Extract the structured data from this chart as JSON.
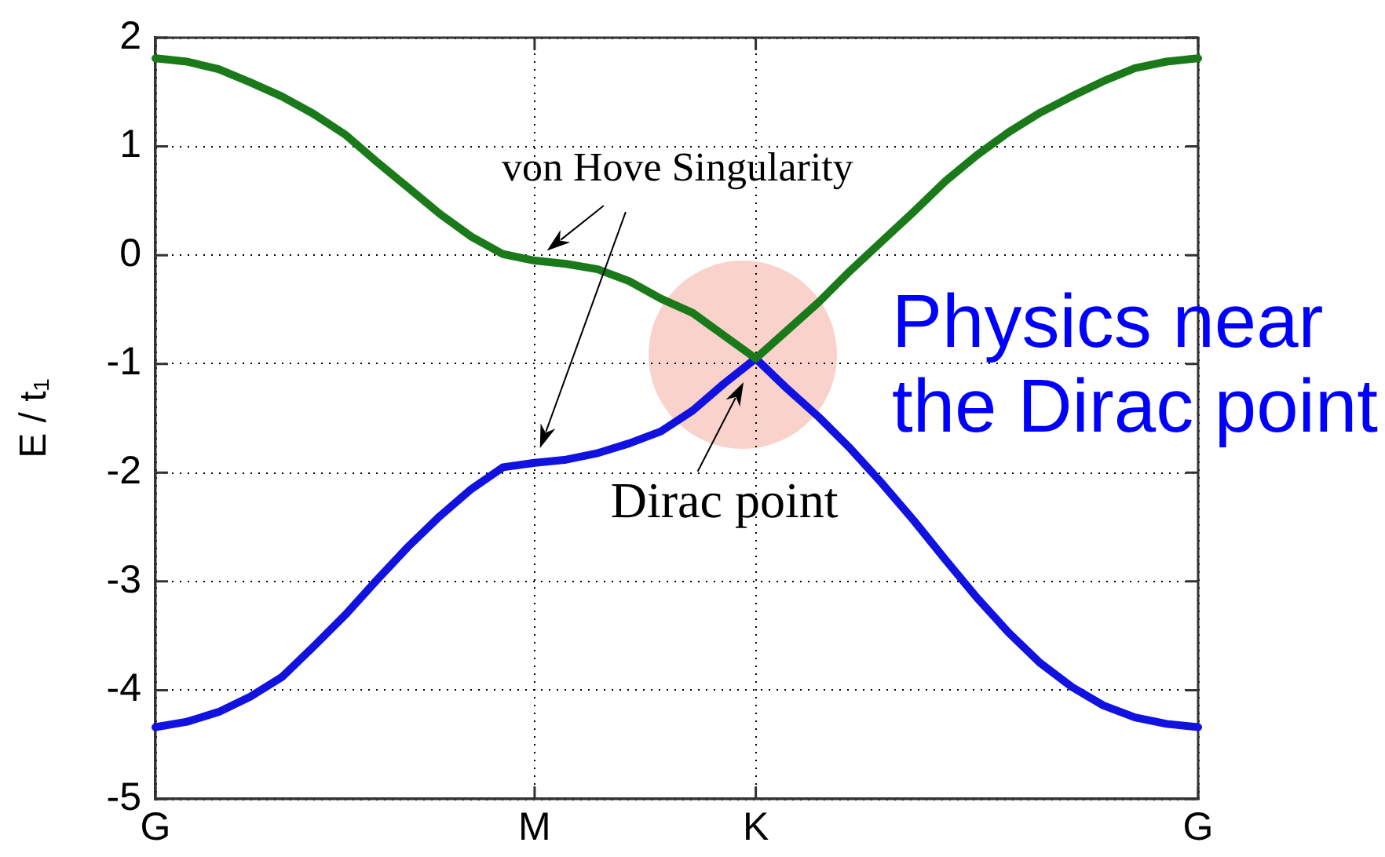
{
  "chart_data": {
    "type": "line",
    "ylabel": "E / t₁",
    "categories": [
      "G",
      null,
      null,
      null,
      null,
      null,
      null,
      null,
      null,
      null,
      null,
      null,
      "M",
      null,
      null,
      null,
      null,
      null,
      null,
      "K",
      null,
      null,
      null,
      null,
      null,
      null,
      null,
      null,
      null,
      null,
      null,
      null,
      null,
      "G"
    ],
    "series": [
      {
        "color": "#1a7a1a",
        "values": [
          1.81,
          1.78,
          1.71,
          1.59,
          1.46,
          1.3,
          1.11,
          0.86,
          0.62,
          0.38,
          0.17,
          0.01,
          -0.05,
          -0.08,
          -0.13,
          -0.24,
          -0.4,
          -0.53,
          -0.74,
          -0.95,
          -0.69,
          -0.43,
          -0.14,
          0.13,
          0.4,
          0.68,
          0.92,
          1.13,
          1.31,
          1.46,
          1.6,
          1.72,
          1.78,
          1.81
        ]
      },
      {
        "color": "#1212e0",
        "values": [
          -4.34,
          -4.29,
          -4.2,
          -4.06,
          -3.88,
          -3.6,
          -3.31,
          -2.99,
          -2.68,
          -2.4,
          -2.15,
          -1.95,
          -1.91,
          -1.88,
          -1.82,
          -1.73,
          -1.62,
          -1.43,
          -1.18,
          -0.95,
          -1.23,
          -1.49,
          -1.78,
          -2.1,
          -2.44,
          -2.8,
          -3.15,
          -3.47,
          -3.75,
          -3.97,
          -4.14,
          -4.25,
          -4.31,
          -4.34
        ]
      }
    ],
    "ylim": [
      -5,
      2
    ],
    "yticks": [
      -5,
      -4,
      -3,
      -2,
      -1,
      0,
      1,
      2
    ],
    "grid": true,
    "marker": "none",
    "line_style": "solid",
    "annotations": [
      {
        "text": "von Hove Singularity",
        "x": "M",
        "y": -0.05
      },
      {
        "text": "Dirac point",
        "x": "K",
        "y": -0.95
      },
      "Physics near the Dirac point"
    ]
  }
}
